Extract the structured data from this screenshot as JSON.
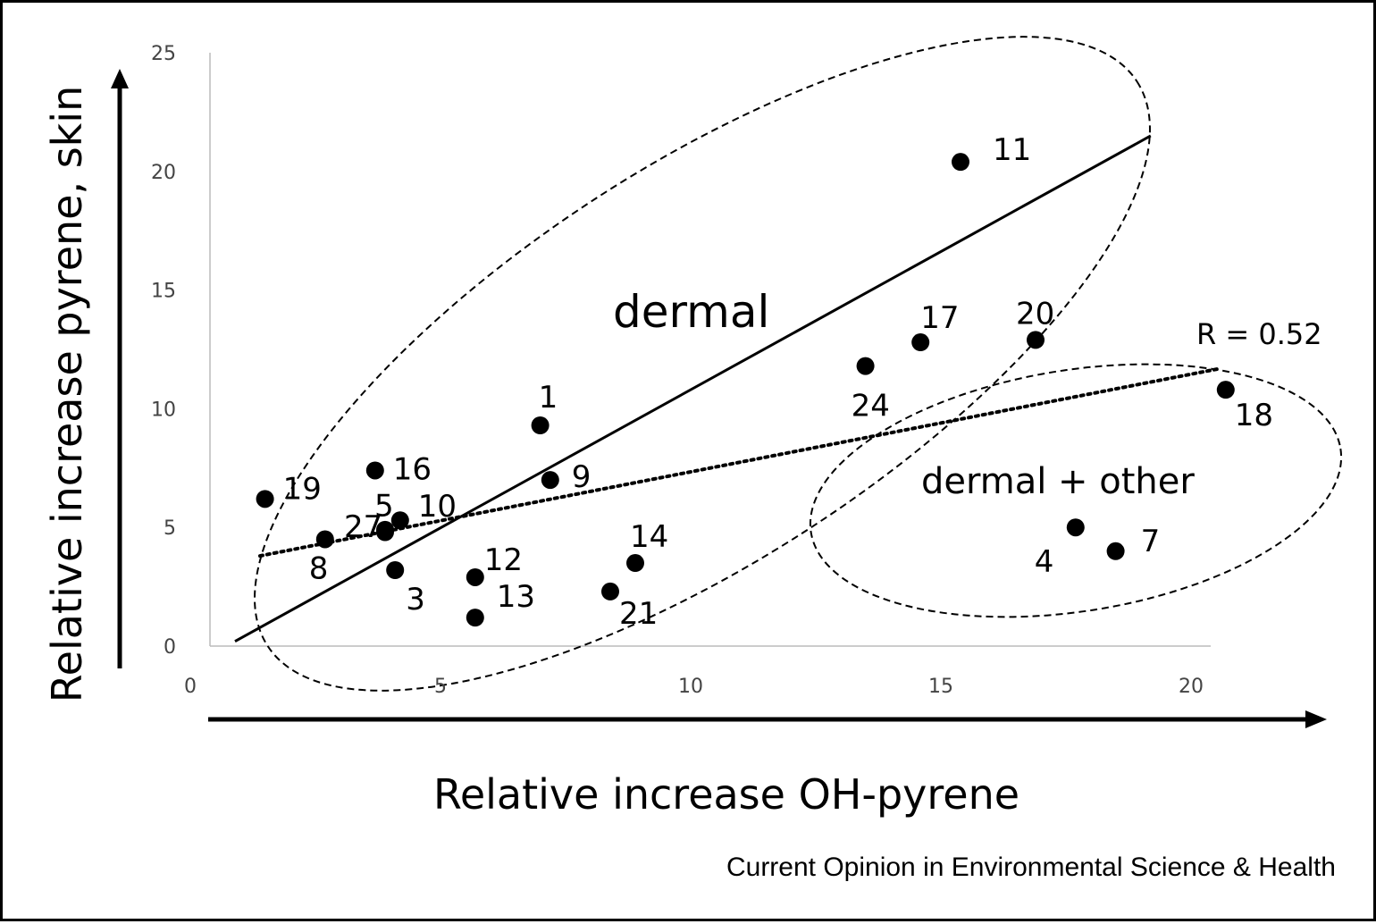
{
  "chart_data": {
    "type": "scatter",
    "xlabel": "Relative increase OH-pyrene",
    "ylabel": "Relative increase pyrene, skin",
    "xlim": [
      0,
      20
    ],
    "ylim": [
      0,
      25
    ],
    "x_ticks": [
      "0",
      "5",
      "10",
      "15",
      "20"
    ],
    "y_ticks": [
      "0",
      "5",
      "10",
      "15",
      "20",
      "25"
    ],
    "grid": false,
    "points": [
      {
        "label": "19",
        "x": 1.1,
        "y": 6.2
      },
      {
        "label": "8",
        "x": 2.3,
        "y": 4.5
      },
      {
        "label": "16",
        "x": 3.3,
        "y": 7.4
      },
      {
        "label": "5",
        "x": 3.5,
        "y": 4.8
      },
      {
        "label": "27",
        "x": 3.5,
        "y": 4.9
      },
      {
        "label": "10",
        "x": 3.8,
        "y": 5.3
      },
      {
        "label": "3",
        "x": 3.7,
        "y": 3.2
      },
      {
        "label": "12",
        "x": 5.3,
        "y": 2.9
      },
      {
        "label": "13",
        "x": 5.3,
        "y": 1.2
      },
      {
        "label": "1",
        "x": 6.6,
        "y": 9.3
      },
      {
        "label": "9",
        "x": 6.8,
        "y": 7.0
      },
      {
        "label": "14",
        "x": 8.5,
        "y": 3.5
      },
      {
        "label": "21",
        "x": 8.0,
        "y": 2.3
      },
      {
        "label": "24",
        "x": 13.1,
        "y": 11.8
      },
      {
        "label": "17",
        "x": 14.2,
        "y": 12.8
      },
      {
        "label": "11",
        "x": 15.0,
        "y": 20.4
      },
      {
        "label": "20",
        "x": 16.5,
        "y": 12.9
      },
      {
        "label": "4",
        "x": 17.3,
        "y": 5.0
      },
      {
        "label": "7",
        "x": 18.1,
        "y": 4.0
      },
      {
        "label": "18",
        "x": 20.3,
        "y": 10.8
      }
    ],
    "lines": [
      {
        "style": "solid",
        "x": [
          0.5,
          18.8
        ],
        "y": [
          0.2,
          21.5
        ]
      },
      {
        "style": "dotted",
        "x": [
          1.0,
          20.2
        ],
        "y": [
          3.8,
          11.7
        ]
      }
    ],
    "annotations": {
      "groups": [
        "dermal",
        "dermal + other"
      ],
      "r_value": "R = 0.52"
    }
  },
  "source": "Current Opinion in Environmental Science & Health"
}
